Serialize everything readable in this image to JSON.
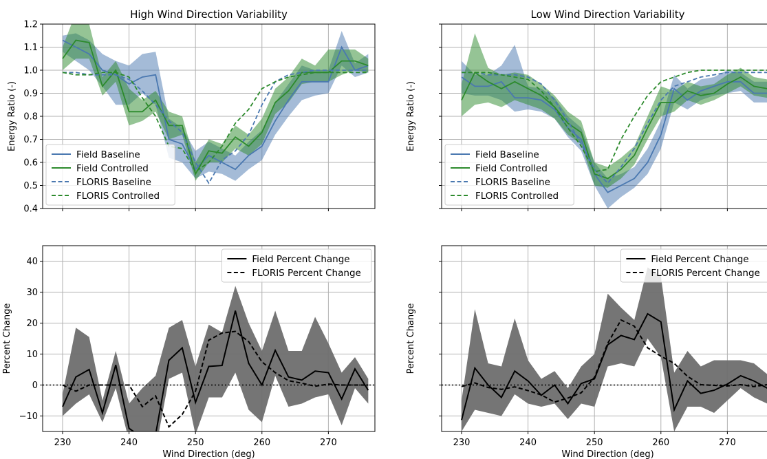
{
  "colors": {
    "baseline": "#4a78b0",
    "controlled": "#2c8a2c",
    "percent": "#000000",
    "band_gray": "#6e6e6e"
  },
  "chart_data": [
    {
      "id": "tl",
      "type": "line",
      "title": "High Wind Direction Variability",
      "xlabel": "",
      "ylabel": "Energy Ratio (-)",
      "xlim": [
        227,
        277
      ],
      "ylim": [
        0.4,
        1.2
      ],
      "xticks": [
        230,
        240,
        250,
        260,
        270
      ],
      "xtick_labels": [
        "",
        "",
        "",
        "",
        ""
      ],
      "yticks": [
        0.4,
        0.5,
        0.6,
        0.7,
        0.8,
        0.9,
        1.0,
        1.1,
        1.2
      ],
      "ytick_labels": [
        "0.4",
        "0.5",
        "0.6",
        "0.7",
        "0.8",
        "0.9",
        "1.0",
        "1.1",
        "1.2"
      ],
      "legend_position": "lower-left",
      "x": [
        230,
        232,
        234,
        236,
        238,
        240,
        242,
        244,
        246,
        248,
        250,
        252,
        254,
        256,
        258,
        260,
        262,
        264,
        266,
        268,
        270,
        272,
        274,
        276
      ],
      "series": [
        {
          "name": "Field Baseline",
          "style": "solid",
          "color": "baseline",
          "values": [
            1.13,
            1.1,
            1.07,
            1.0,
            0.98,
            0.94,
            0.97,
            0.98,
            0.7,
            0.68,
            0.57,
            0.63,
            0.6,
            0.57,
            0.63,
            0.67,
            0.78,
            0.87,
            0.95,
            0.95,
            0.95,
            1.1,
            1.0,
            1.02
          ],
          "band_low": [
            1.08,
            1.04,
            1.0,
            0.93,
            0.85,
            0.85,
            0.9,
            0.85,
            0.62,
            0.6,
            0.53,
            0.56,
            0.55,
            0.52,
            0.57,
            0.61,
            0.72,
            0.8,
            0.87,
            0.89,
            0.9,
            1.02,
            0.97,
            0.99
          ],
          "band_high": [
            1.15,
            1.16,
            1.13,
            1.07,
            1.04,
            1.02,
            1.07,
            1.08,
            0.79,
            0.75,
            0.65,
            0.69,
            0.66,
            0.63,
            0.69,
            0.74,
            0.86,
            0.94,
            1.02,
            1.0,
            1.0,
            1.17,
            1.03,
            1.07
          ]
        },
        {
          "name": "Field Controlled",
          "style": "solid",
          "color": "controlled",
          "values": [
            1.05,
            1.13,
            1.12,
            0.93,
            1.0,
            0.82,
            0.82,
            0.87,
            0.76,
            0.76,
            0.55,
            0.65,
            0.64,
            0.71,
            0.67,
            0.73,
            0.86,
            0.91,
            0.99,
            0.99,
            0.99,
            1.04,
            1.04,
            1.02
          ],
          "band_low": [
            1.0,
            1.05,
            1.05,
            0.89,
            0.95,
            0.76,
            0.78,
            0.82,
            0.7,
            0.72,
            0.52,
            0.6,
            0.6,
            0.66,
            0.63,
            0.68,
            0.81,
            0.86,
            0.94,
            0.95,
            0.95,
            0.98,
            1.0,
            0.99
          ],
          "band_high": [
            1.1,
            1.25,
            1.2,
            0.97,
            1.04,
            0.92,
            0.87,
            0.91,
            0.82,
            0.8,
            0.6,
            0.7,
            0.68,
            0.76,
            0.72,
            0.79,
            0.92,
            0.97,
            1.05,
            1.02,
            1.09,
            1.09,
            1.09,
            1.05
          ]
        },
        {
          "name": "FLORIS Baseline",
          "style": "dashed",
          "color": "baseline",
          "values": [
            0.99,
            0.99,
            0.98,
            0.98,
            0.98,
            0.96,
            0.91,
            0.85,
            0.78,
            0.73,
            0.6,
            0.51,
            0.61,
            0.65,
            0.72,
            0.85,
            0.95,
            0.98,
            0.99,
            1.0,
            1.0,
            1.0,
            1.0,
            1.0
          ]
        },
        {
          "name": "FLORIS Controlled",
          "style": "dashed",
          "color": "controlled",
          "values": [
            0.99,
            0.98,
            0.98,
            0.99,
            0.99,
            0.97,
            0.88,
            0.8,
            0.67,
            0.66,
            0.56,
            0.6,
            0.67,
            0.77,
            0.83,
            0.92,
            0.95,
            0.97,
            0.98,
            0.99,
            0.99,
            0.99,
            0.99,
            0.99
          ]
        }
      ]
    },
    {
      "id": "tr",
      "type": "line",
      "title": "Low Wind Direction Variability",
      "xlabel": "",
      "ylabel": "Energy Ratio (-)",
      "xlim": [
        227,
        277
      ],
      "ylim": [
        0.4,
        1.2
      ],
      "xticks": [
        230,
        240,
        250,
        260,
        270
      ],
      "xtick_labels": [
        "",
        "",
        "",
        "",
        ""
      ],
      "yticks": [
        0.4,
        0.5,
        0.6,
        0.7,
        0.8,
        0.9,
        1.0,
        1.1,
        1.2
      ],
      "ytick_labels": [
        "",
        "",
        "",
        "",
        "",
        "",
        "",
        "",
        ""
      ],
      "legend_position": "lower-left",
      "x": [
        230,
        232,
        234,
        236,
        238,
        240,
        242,
        244,
        246,
        248,
        250,
        252,
        254,
        256,
        258,
        260,
        262,
        264,
        266,
        268,
        270,
        272,
        274,
        276
      ],
      "series": [
        {
          "name": "Field Baseline",
          "style": "solid",
          "color": "baseline",
          "values": [
            0.97,
            0.93,
            0.93,
            0.95,
            0.88,
            0.88,
            0.87,
            0.83,
            0.75,
            0.7,
            0.55,
            0.47,
            0.5,
            0.53,
            0.6,
            0.72,
            0.92,
            0.87,
            0.91,
            0.93,
            0.95,
            0.95,
            0.9,
            0.9
          ],
          "band_low": [
            0.9,
            0.89,
            0.89,
            0.87,
            0.82,
            0.83,
            0.82,
            0.79,
            0.71,
            0.65,
            0.5,
            0.4,
            0.45,
            0.49,
            0.55,
            0.66,
            0.86,
            0.83,
            0.87,
            0.89,
            0.9,
            0.91,
            0.86,
            0.86
          ],
          "band_high": [
            1.04,
            0.98,
            0.98,
            1.02,
            1.11,
            0.93,
            0.92,
            0.88,
            0.8,
            0.75,
            0.6,
            0.53,
            0.55,
            0.58,
            0.66,
            0.78,
            0.98,
            0.92,
            0.96,
            0.97,
            1.0,
            0.99,
            0.95,
            0.95
          ]
        },
        {
          "name": "Field Controlled",
          "style": "solid",
          "color": "controlled",
          "values": [
            0.87,
            0.99,
            0.95,
            0.92,
            0.95,
            0.92,
            0.89,
            0.84,
            0.77,
            0.73,
            0.55,
            0.53,
            0.57,
            0.63,
            0.75,
            0.86,
            0.86,
            0.91,
            0.89,
            0.9,
            0.94,
            0.97,
            0.93,
            0.92
          ],
          "band_low": [
            0.8,
            0.85,
            0.86,
            0.84,
            0.87,
            0.85,
            0.83,
            0.79,
            0.72,
            0.68,
            0.5,
            0.49,
            0.53,
            0.59,
            0.7,
            0.8,
            0.82,
            0.87,
            0.85,
            0.87,
            0.9,
            0.93,
            0.89,
            0.88
          ],
          "band_high": [
            0.94,
            1.16,
            1.01,
            0.98,
            0.99,
            0.98,
            0.94,
            0.89,
            0.82,
            0.78,
            0.6,
            0.58,
            0.62,
            0.67,
            0.8,
            0.93,
            0.91,
            0.95,
            0.93,
            0.94,
            0.98,
            1.01,
            0.97,
            0.96
          ]
        },
        {
          "name": "FLORIS Baseline",
          "style": "dashed",
          "color": "baseline",
          "values": [
            0.99,
            0.99,
            0.98,
            0.98,
            0.98,
            0.97,
            0.94,
            0.87,
            0.78,
            0.68,
            0.57,
            0.51,
            0.58,
            0.66,
            0.77,
            0.87,
            0.93,
            0.95,
            0.97,
            0.98,
            0.99,
            0.99,
            0.99,
            0.99
          ]
        },
        {
          "name": "FLORIS Controlled",
          "style": "dashed",
          "color": "controlled",
          "values": [
            0.99,
            0.99,
            0.99,
            0.98,
            0.97,
            0.96,
            0.91,
            0.84,
            0.75,
            0.67,
            0.56,
            0.57,
            0.7,
            0.8,
            0.89,
            0.95,
            0.97,
            0.99,
            1.0,
            1.0,
            1.0,
            1.0,
            1.0,
            1.0
          ]
        }
      ]
    },
    {
      "id": "bl",
      "type": "line",
      "title": "",
      "xlabel": "Wind Direction (deg)",
      "ylabel": "Percent Change",
      "xlim": [
        227,
        277
      ],
      "ylim": [
        -15,
        45
      ],
      "xticks": [
        230,
        240,
        250,
        260,
        270
      ],
      "xtick_labels": [
        "230",
        "240",
        "250",
        "260",
        "270"
      ],
      "yticks": [
        -10,
        0,
        10,
        20,
        30,
        40
      ],
      "ytick_labels": [
        "−10",
        "0",
        "10",
        "20",
        "30",
        "40"
      ],
      "zero_line": true,
      "legend_position": "top-right",
      "x": [
        230,
        232,
        234,
        236,
        238,
        240,
        242,
        244,
        246,
        248,
        250,
        252,
        254,
        256,
        258,
        260,
        262,
        264,
        266,
        268,
        270,
        272,
        274,
        276
      ],
      "series": [
        {
          "name": "Field Percent Change",
          "style": "solid",
          "color": "percent",
          "values": [
            -7,
            2.6,
            5,
            -9,
            6.5,
            -14,
            -17,
            -16,
            8,
            12,
            -5.6,
            6,
            6.3,
            24,
            7,
            0,
            11.2,
            2.6,
            1.6,
            4.5,
            4,
            -4.5,
            5.2,
            -1.7
          ],
          "band_low": [
            -10,
            -6,
            -3,
            -12,
            -1,
            -18,
            -20,
            -21,
            2,
            4,
            -16,
            -4,
            -4,
            4,
            -8,
            -12,
            3,
            -7,
            -6,
            -4,
            -3,
            -13,
            -1,
            -6
          ],
          "band_high": [
            -3,
            18.5,
            15.5,
            -5,
            11,
            -6,
            -1,
            3,
            18.5,
            21,
            6,
            19.5,
            17,
            32,
            20,
            11,
            24,
            11,
            11,
            22,
            13.5,
            4,
            9,
            2
          ]
        },
        {
          "name": "FLORIS Percent Change",
          "style": "dashed",
          "color": "percent",
          "values": [
            0,
            -2,
            0,
            0,
            0,
            0,
            -7,
            -3.5,
            -13.5,
            -9.5,
            -2,
            14.5,
            16.8,
            17.3,
            14,
            7.5,
            4,
            1.4,
            0.6,
            -0.4,
            0.3,
            0,
            0,
            0
          ]
        }
      ]
    },
    {
      "id": "br",
      "type": "line",
      "title": "",
      "xlabel": "Wind Direction (deg)",
      "ylabel": "Percent Change",
      "xlim": [
        227,
        277
      ],
      "ylim": [
        -15,
        45
      ],
      "xticks": [
        230,
        240,
        250,
        260,
        270
      ],
      "xtick_labels": [
        "230",
        "240",
        "250",
        "260",
        "270"
      ],
      "yticks": [
        -10,
        0,
        10,
        20,
        30,
        40
      ],
      "ytick_labels": [
        "",
        "",
        "",
        "",
        "",
        ""
      ],
      "zero_line": true,
      "legend_position": "top-right",
      "x": [
        230,
        232,
        234,
        236,
        238,
        240,
        242,
        244,
        246,
        248,
        250,
        252,
        254,
        256,
        258,
        260,
        262,
        264,
        266,
        268,
        270,
        272,
        274,
        276
      ],
      "series": [
        {
          "name": "Field Percent Change",
          "style": "solid",
          "color": "percent",
          "values": [
            -11.3,
            5.5,
            0,
            -4,
            4.5,
            1.3,
            -3.3,
            0,
            -6,
            0.5,
            2,
            13,
            16,
            14.7,
            23,
            20.4,
            -8,
            1.3,
            -2.7,
            -1.7,
            0.3,
            3,
            1.3,
            -1
          ],
          "band_low": [
            -15,
            -8,
            -9,
            -10,
            -3,
            -6,
            -7,
            -6,
            -11,
            -6,
            -7,
            6,
            7,
            6,
            15,
            9,
            -15,
            -7,
            -7,
            -9,
            -5,
            -1,
            -4,
            -6
          ],
          "band_high": [
            -5,
            24.5,
            7,
            6,
            21.5,
            8,
            2,
            4.5,
            -1,
            6,
            10,
            29.5,
            25,
            21,
            38,
            35,
            4,
            11,
            6,
            8,
            8,
            8,
            7,
            3.5
          ]
        },
        {
          "name": "FLORIS Percent Change",
          "style": "dashed",
          "color": "percent",
          "values": [
            -0.5,
            0.7,
            -0.8,
            -1.4,
            -0.6,
            -1.8,
            -3.2,
            -5.5,
            -4.2,
            -2.5,
            2.5,
            13.5,
            21,
            19,
            12,
            9.3,
            7,
            2.8,
            0.1,
            -0.1,
            -0.3,
            0.1,
            -0.5,
            0.1
          ]
        }
      ]
    }
  ]
}
